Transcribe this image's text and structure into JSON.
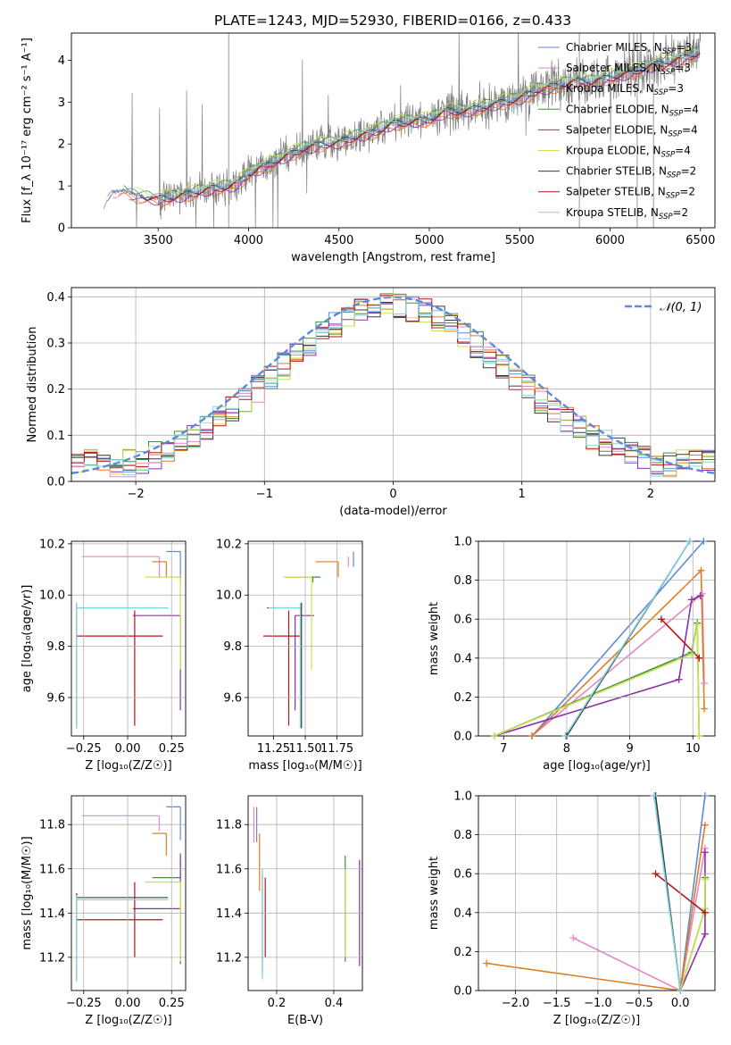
{
  "figure": {
    "title": "PLATE=1243, MJD=52930, FIBERID=0166, z=0.433"
  },
  "chart_data": [
    {
      "id": "spectrum",
      "type": "line",
      "title": "PLATE=1243, MJD=52930, FIBERID=0166, z=0.433",
      "xlabel": "wavelength [Angstrom, rest frame]",
      "ylabel": "Flux [f_λ 10⁻¹⁷ erg cm⁻² s⁻¹ A⁻¹]",
      "xlim": [
        3020,
        6580
      ],
      "ylim": [
        0,
        4.65
      ],
      "xticks": [
        3500,
        4000,
        4500,
        5000,
        5500,
        6000,
        6500
      ],
      "yticks": [
        0,
        1,
        2,
        3,
        4
      ],
      "grid": false,
      "legend_position": "right",
      "observed_color": "#808080",
      "continuum": {
        "x": [
          3200,
          3250,
          3300,
          3400,
          3500,
          3600,
          3700,
          3800,
          3900,
          3950,
          4000,
          4100,
          4200,
          4300,
          4400,
          4500,
          4600,
          4700,
          4800,
          4900,
          5000,
          5100,
          5200,
          5300,
          5400,
          5500,
          5600,
          5700,
          5800,
          5900,
          6000,
          6100,
          6200,
          6300,
          6400,
          6500
        ],
        "y": [
          0.5,
          0.85,
          0.9,
          0.75,
          0.7,
          0.75,
          0.85,
          0.95,
          1.0,
          1.1,
          1.3,
          1.5,
          1.7,
          1.9,
          2.0,
          2.05,
          2.2,
          2.3,
          2.5,
          2.55,
          2.6,
          2.8,
          2.8,
          2.9,
          3.0,
          3.1,
          3.3,
          3.4,
          3.5,
          3.5,
          3.6,
          3.7,
          3.85,
          3.95,
          4.05,
          4.2
        ]
      },
      "legend": [
        {
          "label": "Chabrier MILES, N",
          "sub": "SSP",
          "tail": "=3",
          "color": "#5b8bd8"
        },
        {
          "label": "Salpeter MILES, N",
          "sub": "SSP",
          "tail": "=3",
          "color": "#e887c4"
        },
        {
          "label": "Kroupa MILES, N",
          "sub": "SSP",
          "tail": "=3",
          "color": "#e07b21"
        },
        {
          "label": "Chabrier ELODIE, N",
          "sub": "SSP",
          "tail": "=4",
          "color": "#3f8f3f"
        },
        {
          "label": "Salpeter ELODIE, N",
          "sub": "SSP",
          "tail": "=4",
          "color": "#8b2fa8"
        },
        {
          "label": "Kroupa ELODIE, N",
          "sub": "SSP",
          "tail": "=4",
          "color": "#c7e34f"
        },
        {
          "label": "Chabrier STELIB, N",
          "sub": "SSP",
          "tail": "=2",
          "color": "#3a3a3a"
        },
        {
          "label": "Salpeter STELIB, N",
          "sub": "SSP",
          "tail": "=2",
          "color": "#b0161a"
        },
        {
          "label": "Kroupa STELIB, N",
          "sub": "SSP",
          "tail": "=2",
          "color": "#7fd7e0"
        }
      ]
    },
    {
      "id": "residuals",
      "type": "line",
      "xlabel": "(data-model)/error",
      "ylabel": "Normed distribution",
      "xlim": [
        -2.5,
        2.5
      ],
      "ylim": [
        0,
        0.42
      ],
      "xticks": [
        -2,
        -1,
        0,
        1,
        2
      ],
      "yticks": [
        0.0,
        0.1,
        0.2,
        0.3,
        0.4
      ],
      "grid": true,
      "gaussian": {
        "label": "𝒩(0, 1)",
        "mean": 0,
        "sigma": 1,
        "color": "#5b8bd8"
      },
      "legend_position": "top-right",
      "series_colors": [
        "#5b8bd8",
        "#e887c4",
        "#e07b21",
        "#3f8f3f",
        "#8b2fa8",
        "#c7e34f",
        "#3a3a3a",
        "#b0161a",
        "#7fd7e0"
      ]
    },
    {
      "id": "age_vs_Z",
      "type": "scatter",
      "xlabel": "Z [log₁₀(Z/Z☉)]",
      "ylabel": "age  [log₁₀(age/yr)]",
      "xlim": [
        -0.32,
        0.33
      ],
      "ylim": [
        9.45,
        10.21
      ],
      "xticks": [
        -0.25,
        0.0,
        0.25
      ],
      "yticks": [
        9.6,
        9.8,
        10.0,
        10.2
      ],
      "grid": true,
      "points": [
        {
          "x": 0.3,
          "y": 10.17,
          "xerr": [
            0.08,
            0.0
          ],
          "yerr": [
            0.1,
            0.0
          ],
          "color": "#5b8bd8"
        },
        {
          "x": 0.18,
          "y": 10.15,
          "xerr": [
            0.44,
            0.0
          ],
          "yerr": [
            0.08,
            0.0
          ],
          "color": "#e887c4"
        },
        {
          "x": 0.22,
          "y": 10.13,
          "xerr": [
            0.08,
            0.0
          ],
          "yerr": [
            0.06,
            0.0
          ],
          "color": "#e07b21"
        },
        {
          "x": 0.3,
          "y": 10.07,
          "xerr": [
            0.02,
            0.0
          ],
          "yerr": [
            0.02,
            0.0
          ],
          "color": "#3f8f3f"
        },
        {
          "x": 0.3,
          "y": 9.92,
          "xerr": [
            0.27,
            0.0
          ],
          "yerr": [
            0.37,
            0.0
          ],
          "color": "#8b2fa8"
        },
        {
          "x": 0.3,
          "y": 10.07,
          "xerr": [
            0.2,
            0.0
          ],
          "yerr": [
            0.36,
            0.0
          ],
          "color": "#c7e34f"
        },
        {
          "x": -0.29,
          "y": 9.95,
          "xerr": [
            0.0,
            0.52
          ],
          "yerr": [
            0.47,
            0.02
          ],
          "color": "#3a3a3a"
        },
        {
          "x": 0.04,
          "y": 9.84,
          "xerr": [
            0.33,
            0.16
          ],
          "yerr": [
            0.35,
            0.1
          ],
          "color": "#b0161a"
        },
        {
          "x": -0.29,
          "y": 9.95,
          "xerr": [
            0.0,
            0.52
          ],
          "yerr": [
            0.47,
            0.02
          ],
          "color": "#7fd7e0"
        }
      ]
    },
    {
      "id": "age_vs_mass",
      "type": "scatter",
      "xlabel": "mass [log₁₀(M/M☉)]",
      "ylabel": "",
      "xlim": [
        11.05,
        11.95
      ],
      "ylim": [
        9.45,
        10.21
      ],
      "xticks": [
        11.25,
        11.5,
        11.75
      ],
      "yticks": [
        9.6,
        9.8,
        10.0,
        10.2
      ],
      "grid": true,
      "points": [
        {
          "x": 11.88,
          "y": 10.17,
          "xerr": [
            0.0,
            0.0
          ],
          "yerr": [
            0.06,
            0.0
          ],
          "color": "#5b8bd8"
        },
        {
          "x": 11.84,
          "y": 10.15,
          "xerr": [
            0.0,
            0.0
          ],
          "yerr": [
            0.04,
            0.0
          ],
          "color": "#e887c4"
        },
        {
          "x": 11.76,
          "y": 10.13,
          "xerr": [
            0.18,
            0.0
          ],
          "yerr": [
            0.06,
            0.0
          ],
          "color": "#e07b21"
        },
        {
          "x": 11.56,
          "y": 10.07,
          "xerr": [
            0.22,
            0.06
          ],
          "yerr": [
            0.02,
            0.0
          ],
          "color": "#3f8f3f"
        },
        {
          "x": 11.42,
          "y": 9.92,
          "xerr": [
            0.0,
            0.15
          ],
          "yerr": [
            0.37,
            0.0
          ],
          "color": "#8b2fa8"
        },
        {
          "x": 11.55,
          "y": 10.07,
          "xerr": [
            0.22,
            0.0
          ],
          "yerr": [
            0.36,
            0.0
          ],
          "color": "#c7e34f"
        },
        {
          "x": 11.47,
          "y": 9.95,
          "xerr": [
            0.27,
            0.0
          ],
          "yerr": [
            0.47,
            0.02
          ],
          "color": "#3a3a3a"
        },
        {
          "x": 11.37,
          "y": 9.84,
          "xerr": [
            0.2,
            0.1
          ],
          "yerr": [
            0.35,
            0.1
          ],
          "color": "#b0161a"
        },
        {
          "x": 11.46,
          "y": 9.95,
          "xerr": [
            0.25,
            0.0
          ],
          "yerr": [
            0.47,
            0.02
          ],
          "color": "#7fd7e0"
        }
      ]
    },
    {
      "id": "weight_vs_age",
      "type": "line",
      "xlabel": "age  [log₁₀(age/yr)]",
      "ylabel": "mass weight",
      "xlim": [
        6.6,
        10.35
      ],
      "ylim": [
        0,
        1.0
      ],
      "xticks": [
        7,
        8,
        9,
        10
      ],
      "yticks": [
        0.0,
        0.2,
        0.4,
        0.6,
        0.8,
        1.0
      ],
      "grid": true,
      "series": [
        {
          "x": [
            7.45,
            10.17
          ],
          "y": [
            0.0,
            1.0
          ],
          "color": "#5b8bd8"
        },
        {
          "x": [
            7.45,
            10.15,
            10.18
          ],
          "y": [
            0.0,
            0.73,
            0.27
          ],
          "color": "#e887c4"
        },
        {
          "x": [
            7.45,
            10.13,
            10.18
          ],
          "y": [
            0.0,
            0.85,
            0.14
          ],
          "color": "#e07b21"
        },
        {
          "x": [
            6.85,
            9.98,
            10.07,
            10.1
          ],
          "y": [
            0.0,
            0.43,
            0.58,
            0.0
          ],
          "color": "#3f8f3f"
        },
        {
          "x": [
            6.85,
            9.78,
            9.98,
            10.12
          ],
          "y": [
            0.0,
            0.29,
            0.7,
            0.72
          ],
          "color": "#8b2fa8"
        },
        {
          "x": [
            6.85,
            9.98,
            10.07,
            10.1
          ],
          "y": [
            0.0,
            0.42,
            0.57,
            0.0
          ],
          "color": "#c7e34f"
        },
        {
          "x": [
            8.0,
            9.95
          ],
          "y": [
            0.0,
            1.0
          ],
          "color": "#3a3a3a"
        },
        {
          "x": [
            9.5,
            10.1
          ],
          "y": [
            0.6,
            0.4
          ],
          "color": "#b0161a"
        },
        {
          "x": [
            7.98,
            9.95
          ],
          "y": [
            0.0,
            1.0
          ],
          "color": "#7fd7e0"
        }
      ]
    },
    {
      "id": "mass_vs_Z",
      "type": "scatter",
      "xlabel": "Z [log₁₀(Z/Z☉)]",
      "ylabel": "mass [log₁₀(M/M☉)]",
      "xlim": [
        -0.32,
        0.33
      ],
      "ylim": [
        11.05,
        11.93
      ],
      "xticks": [
        -0.25,
        0.0,
        0.25
      ],
      "yticks": [
        11.2,
        11.4,
        11.6,
        11.8
      ],
      "grid": true,
      "points": [
        {
          "x": 0.3,
          "y": 11.88,
          "xerr": [
            0.08,
            0.0
          ],
          "yerr": [
            0.15,
            0.0
          ],
          "color": "#5b8bd8"
        },
        {
          "x": 0.18,
          "y": 11.84,
          "xerr": [
            0.44,
            0.0
          ],
          "yerr": [
            0.07,
            0.0
          ],
          "color": "#e887c4"
        },
        {
          "x": 0.22,
          "y": 11.76,
          "xerr": [
            0.08,
            0.0
          ],
          "yerr": [
            0.1,
            0.0
          ],
          "color": "#e07b21"
        },
        {
          "x": 0.3,
          "y": 11.56,
          "xerr": [
            0.16,
            0.0
          ],
          "yerr": [
            0.0,
            0.08
          ],
          "color": "#3f8f3f"
        },
        {
          "x": 0.3,
          "y": 11.42,
          "xerr": [
            0.27,
            0.0
          ],
          "yerr": [
            0.25,
            0.25
          ],
          "color": "#8b2fa8"
        },
        {
          "x": 0.3,
          "y": 11.54,
          "xerr": [
            0.2,
            0.0
          ],
          "yerr": [
            0.36,
            0.0
          ],
          "color": "#c7e34f"
        },
        {
          "x": -0.29,
          "y": 11.47,
          "xerr": [
            0.0,
            0.52
          ],
          "yerr": [
            0.37,
            0.02
          ],
          "color": "#3a3a3a"
        },
        {
          "x": 0.04,
          "y": 11.37,
          "xerr": [
            0.33,
            0.16
          ],
          "yerr": [
            0.17,
            0.17
          ],
          "color": "#b0161a"
        },
        {
          "x": -0.29,
          "y": 11.46,
          "xerr": [
            0.0,
            0.52
          ],
          "yerr": [
            0.37,
            0.02
          ],
          "color": "#7fd7e0"
        }
      ]
    },
    {
      "id": "mass_vs_ebv",
      "type": "scatter",
      "xlabel": "E(B-V)",
      "ylabel": "",
      "xlim": [
        0.1,
        0.5
      ],
      "ylim": [
        11.05,
        11.93
      ],
      "xticks": [
        0.2,
        0.4
      ],
      "yticks": [
        11.2,
        11.4,
        11.6,
        11.8
      ],
      "grid": true,
      "points": [
        {
          "x": 0.13,
          "y": 11.8,
          "yerr": [
            0.08,
            0.08
          ],
          "color": "#5b8bd8"
        },
        {
          "x": 0.12,
          "y": 11.8,
          "yerr": [
            0.08,
            0.08
          ],
          "color": "#e887c4"
        },
        {
          "x": 0.14,
          "y": 11.63,
          "yerr": [
            0.13,
            0.13
          ],
          "color": "#e07b21"
        },
        {
          "x": 0.44,
          "y": 11.42,
          "yerr": [
            0.24,
            0.24
          ],
          "color": "#3f8f3f"
        },
        {
          "x": 0.49,
          "y": 11.4,
          "yerr": [
            0.24,
            0.24
          ],
          "color": "#8b2fa8"
        },
        {
          "x": 0.44,
          "y": 11.4,
          "yerr": [
            0.2,
            0.2
          ],
          "color": "#c7e34f"
        },
        {
          "x": 0.15,
          "y": 11.35,
          "yerr": [
            0.22,
            0.22
          ],
          "color": "#3a3a3a"
        },
        {
          "x": 0.16,
          "y": 11.38,
          "yerr": [
            0.18,
            0.18
          ],
          "color": "#b0161a"
        },
        {
          "x": 0.15,
          "y": 11.35,
          "yerr": [
            0.25,
            0.25
          ],
          "color": "#7fd7e0"
        }
      ]
    },
    {
      "id": "weight_vs_Z",
      "type": "line",
      "xlabel": "Z [log₁₀(Z/Z☉)]",
      "ylabel": "mass weight",
      "xlim": [
        -2.45,
        0.42
      ],
      "ylim": [
        0,
        1.0
      ],
      "xticks": [
        -2.0,
        -1.5,
        -1.0,
        -0.5,
        0.0
      ],
      "yticks": [
        0.0,
        0.2,
        0.4,
        0.6,
        0.8,
        1.0
      ],
      "grid": true,
      "series": [
        {
          "x": [
            0.0,
            0.3
          ],
          "y": [
            0.0,
            1.0
          ],
          "color": "#5b8bd8"
        },
        {
          "x": [
            -1.3,
            0.0,
            0.3
          ],
          "y": [
            0.27,
            0.0,
            0.73
          ],
          "color": "#e887c4"
        },
        {
          "x": [
            -2.35,
            0.0,
            0.3
          ],
          "y": [
            0.14,
            0.0,
            0.85
          ],
          "color": "#e07b21"
        },
        {
          "x": [
            0.0,
            0.3,
            0.3
          ],
          "y": [
            0.0,
            0.42,
            0.58
          ],
          "color": "#3f8f3f"
        },
        {
          "x": [
            0.0,
            0.3,
            0.3
          ],
          "y": [
            0.0,
            0.29,
            0.71
          ],
          "color": "#8b2fa8"
        },
        {
          "x": [
            0.0,
            0.3,
            0.3
          ],
          "y": [
            0.0,
            0.42,
            0.57
          ],
          "color": "#c7e34f"
        },
        {
          "x": [
            0.0,
            -0.3
          ],
          "y": [
            0.0,
            1.0
          ],
          "color": "#3a3a3a"
        },
        {
          "x": [
            -0.3,
            0.3
          ],
          "y": [
            0.6,
            0.4
          ],
          "color": "#b0161a"
        },
        {
          "x": [
            0.0,
            -0.32
          ],
          "y": [
            0.0,
            1.0
          ],
          "color": "#7fd7e0"
        }
      ]
    }
  ]
}
